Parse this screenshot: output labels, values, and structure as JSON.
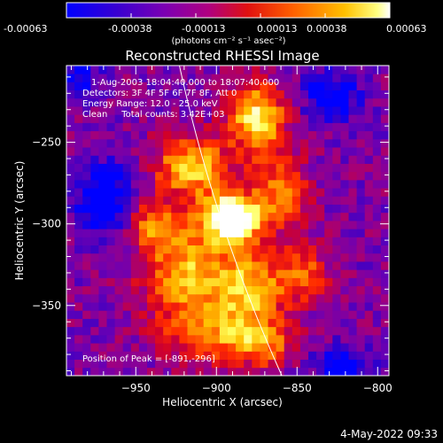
{
  "colorbar": {
    "ticks": [
      "-0.00063",
      "-0.00038",
      "-0.00013",
      "0.00013",
      "0.00038",
      "0.00063"
    ],
    "unit_label": "(photons cm⁻² s⁻¹ asec⁻²)",
    "range": [
      -0.00063,
      0.00063
    ]
  },
  "title": "Reconstructed RHESSI Image",
  "info": {
    "time_range": "1-Aug-2003 18:04:40.000 to 18:07:40.000",
    "detectors": "Detectors: 3F 4F 5F 6F 7F 8F, Att 0",
    "energy": "Energy Range: 12.0 - 25.0 keV",
    "clean": "Clean     Total counts: 3.42E+03"
  },
  "peak_label": "Position of Peak = [-891,-296]",
  "xlabel": "Heliocentric X (arcsec)",
  "ylabel": "Heliocentric Y (arcsec)",
  "footer_date": "4-May-2022 09:33",
  "chart_data": {
    "type": "heatmap",
    "title": "Reconstructed RHESSI Image",
    "xlabel": "Heliocentric X (arcsec)",
    "ylabel": "Heliocentric Y (arcsec)",
    "xlim": [
      -993,
      -793
    ],
    "ylim": [
      -393,
      -203
    ],
    "xticks": [
      -950,
      -900,
      -850,
      -800
    ],
    "xtick_labels": [
      "−950",
      "−900",
      "−850",
      "−800"
    ],
    "yticks": [
      -250,
      -300,
      -350
    ],
    "ytick_labels": [
      "−250",
      "−300",
      "−350"
    ],
    "colorscale": [
      "#0000ff",
      "#3200c8",
      "#7000b0",
      "#a00080",
      "#d0002a",
      "#ff2a00",
      "#ff7a00",
      "#ffc000",
      "#ffff60",
      "#ffffff"
    ],
    "peak": [
      -891,
      -296
    ],
    "hotspots": [
      {
        "x": -891,
        "y": -296,
        "amp": 1.0,
        "sx": 12,
        "sy": 10
      },
      {
        "x": -875,
        "y": -235,
        "amp": 0.65,
        "sx": 12,
        "sy": 14
      },
      {
        "x": -915,
        "y": -265,
        "amp": 0.55,
        "sx": 16,
        "sy": 13
      },
      {
        "x": -880,
        "y": -340,
        "amp": 0.55,
        "sx": 16,
        "sy": 18
      },
      {
        "x": -920,
        "y": -330,
        "amp": 0.5,
        "sx": 18,
        "sy": 22
      },
      {
        "x": -940,
        "y": -300,
        "amp": 0.35,
        "sx": 10,
        "sy": 10
      },
      {
        "x": -860,
        "y": -280,
        "amp": 0.4,
        "sx": 12,
        "sy": 16
      },
      {
        "x": -845,
        "y": -330,
        "amp": 0.35,
        "sx": 10,
        "sy": 12
      },
      {
        "x": -900,
        "y": -370,
        "amp": 0.35,
        "sx": 22,
        "sy": 10
      },
      {
        "x": -870,
        "y": -375,
        "amp": 0.3,
        "sx": 12,
        "sy": 10
      }
    ],
    "coldspots": [
      {
        "x": -970,
        "y": -285,
        "amp": 0.4,
        "sx": 12,
        "sy": 16
      },
      {
        "x": -828,
        "y": -222,
        "amp": 0.35,
        "sx": 12,
        "sy": 10
      },
      {
        "x": -820,
        "y": -390,
        "amp": 0.3,
        "sx": 14,
        "sy": 10
      },
      {
        "x": -985,
        "y": -210,
        "amp": 0.25,
        "sx": 10,
        "sy": 10
      }
    ],
    "limb": {
      "r": 945,
      "y_min": -393,
      "y_max": -203
    }
  }
}
